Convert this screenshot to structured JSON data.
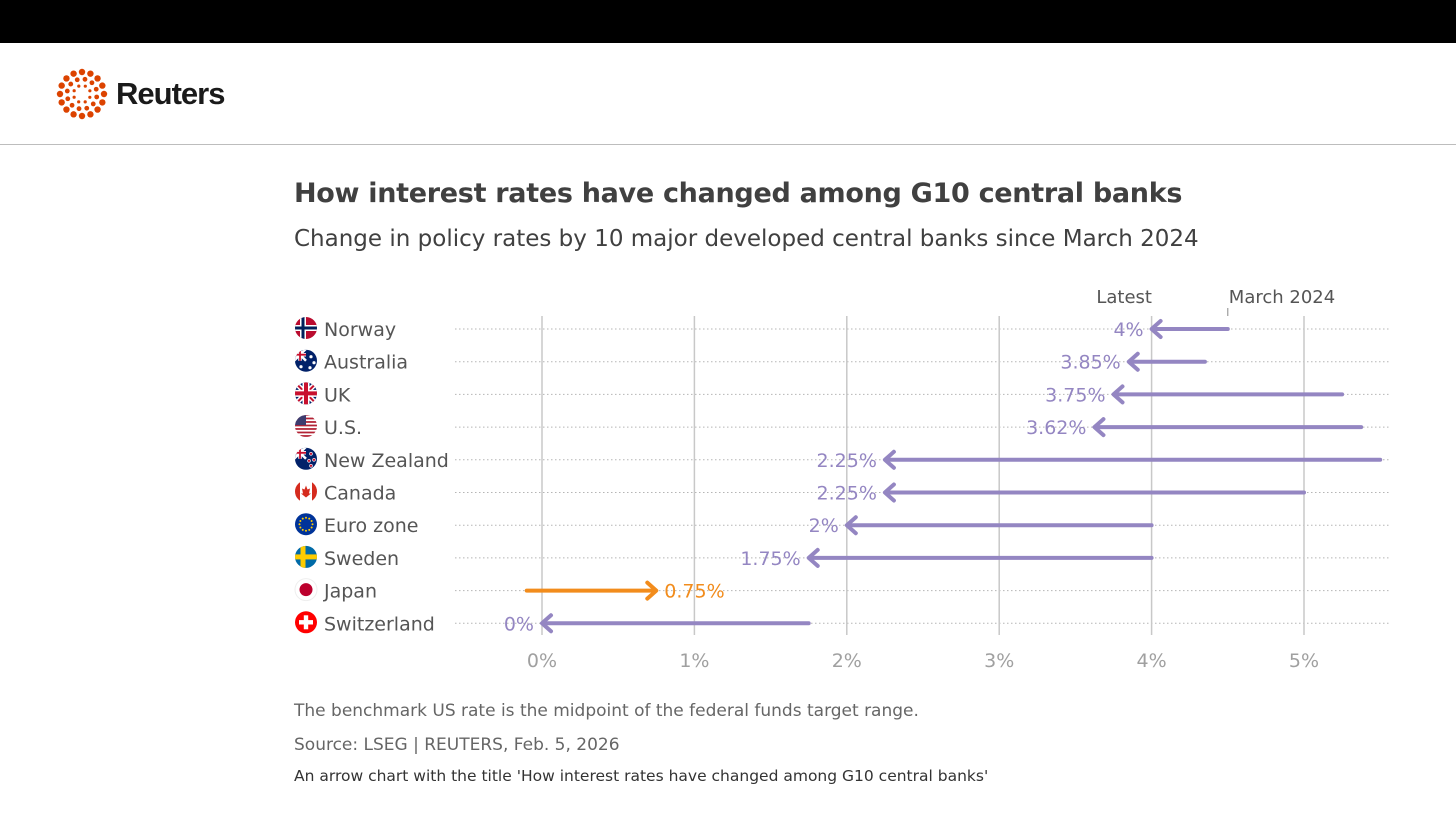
{
  "brand": {
    "name": "Reuters",
    "logo_color": "#dc4300"
  },
  "colors": {
    "decrease": "#9486c2",
    "increase": "#f28c1c",
    "grid": "#c8c8c8",
    "axis_text": "#a0a0a0",
    "label_text": "#555555"
  },
  "chart_data": {
    "type": "arrow",
    "title": "How interest rates have changed among G10 central banks",
    "subtitle": "Change in policy rates by 10 major developed central banks since March 2024",
    "legend": {
      "latest": "Latest",
      "start": "March 2024"
    },
    "xlim": [
      0,
      5.5
    ],
    "ticks": [
      {
        "value": 0,
        "label": "0%"
      },
      {
        "value": 1,
        "label": "1%"
      },
      {
        "value": 2,
        "label": "2%"
      },
      {
        "value": 3,
        "label": "3%"
      },
      {
        "value": 4,
        "label": "4%"
      },
      {
        "value": 5,
        "label": "5%"
      }
    ],
    "rows": [
      {
        "country": "Norway",
        "flag": "norway-flag-icon",
        "march_2024": 4.5,
        "latest": 4.0,
        "label": "4%"
      },
      {
        "country": "Australia",
        "flag": "australia-flag-icon",
        "march_2024": 4.35,
        "latest": 3.85,
        "label": "3.85%"
      },
      {
        "country": "UK",
        "flag": "uk-flag-icon",
        "march_2024": 5.25,
        "latest": 3.75,
        "label": "3.75%"
      },
      {
        "country": "U.S.",
        "flag": "us-flag-icon",
        "march_2024": 5.375,
        "latest": 3.625,
        "label": "3.62%"
      },
      {
        "country": "New Zealand",
        "flag": "new-zealand-flag-icon",
        "march_2024": 5.5,
        "latest": 2.25,
        "label": "2.25%"
      },
      {
        "country": "Canada",
        "flag": "canada-flag-icon",
        "march_2024": 5.0,
        "latest": 2.25,
        "label": "2.25%"
      },
      {
        "country": "Euro zone",
        "flag": "eu-flag-icon",
        "march_2024": 4.0,
        "latest": 2.0,
        "label": "2%"
      },
      {
        "country": "Sweden",
        "flag": "sweden-flag-icon",
        "march_2024": 4.0,
        "latest": 1.75,
        "label": "1.75%"
      },
      {
        "country": "Japan",
        "flag": "japan-flag-icon",
        "march_2024": -0.1,
        "latest": 0.75,
        "label": "0.75%"
      },
      {
        "country": "Switzerland",
        "flag": "switzerland-flag-icon",
        "march_2024": 1.75,
        "latest": 0.0,
        "label": "0%"
      }
    ]
  },
  "footer": {
    "note": "The benchmark US rate is the midpoint of the federal funds target range.",
    "source": "Source: LSEG | REUTERS, Feb. 5, 2026",
    "alt_text": "An arrow chart with the title 'How interest rates have changed among G10 central banks'"
  }
}
